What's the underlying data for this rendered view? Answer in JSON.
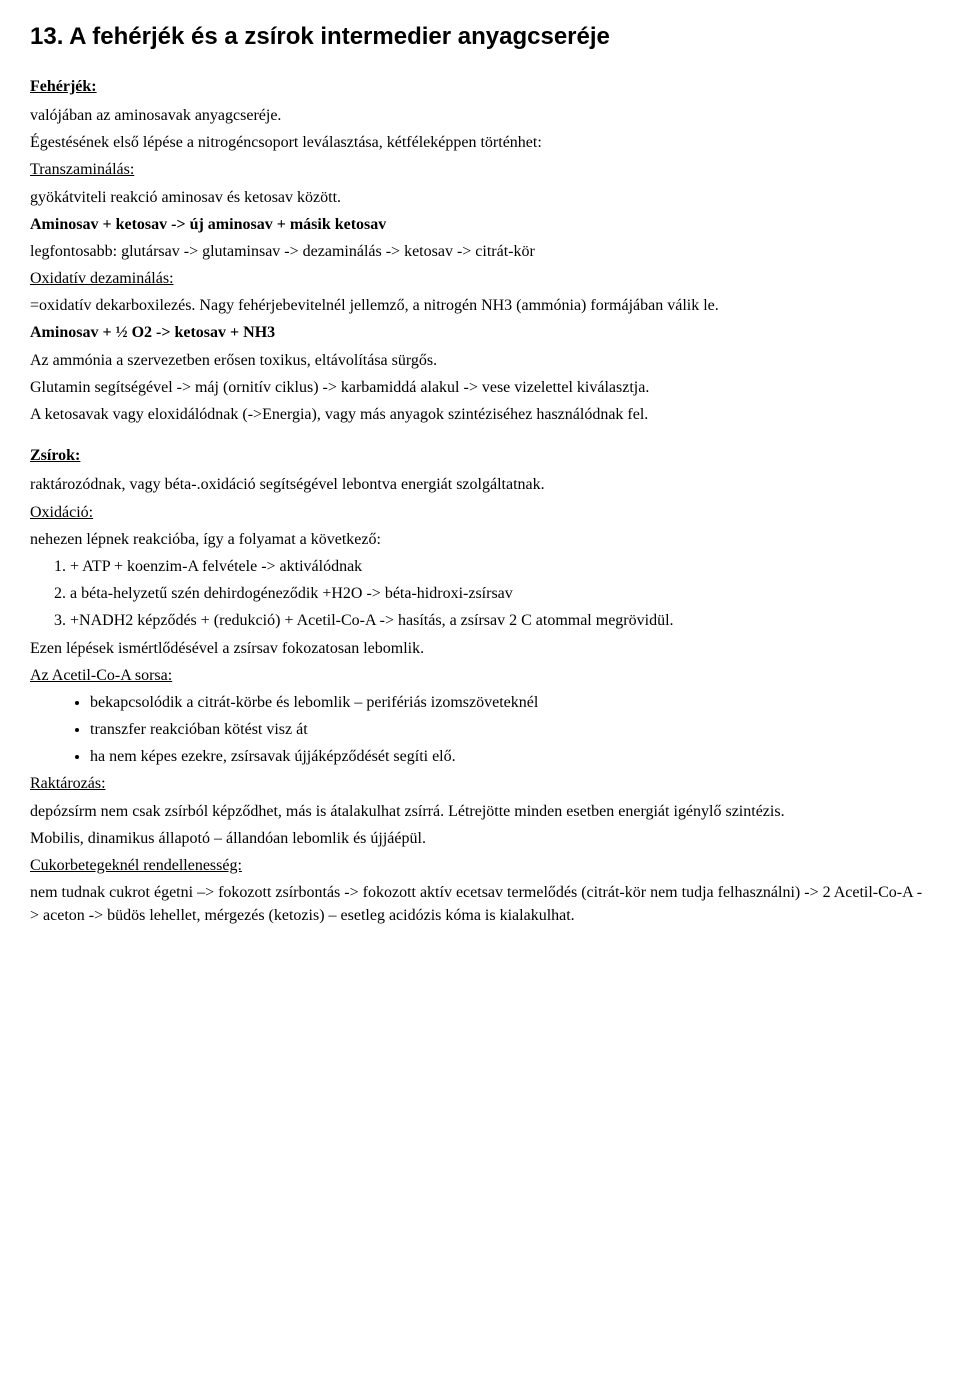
{
  "title": "13. A fehérjék és a zsírok intermedier anyagcseréje",
  "feherjek": {
    "label": "Fehérjék:",
    "p1": "valójában az aminosavak anyagcseréje.",
    "p2": "Égestésének első lépése a nitrogéncsoport leválasztása, kétféleképpen történhet:",
    "transzam_label": "Transzaminálás:",
    "p3": "gyökátviteli reakció aminosav és ketosav között.",
    "p4_bold": "Aminosav + ketosav -> új aminosav + másik ketosav",
    "p5": "legfontosabb: glutársav -> glutaminsav -> dezaminálás -> ketosav -> citrát-kör",
    "oxidativ_label": "Oxidatív dezaminálás:",
    "p6": "=oxidatív dekarboxilezés. Nagy fehérjebevitelnél jellemző, a nitrogén NH3 (ammónia) formájában válik le.",
    "p7_bold": "Aminosav + ½ O2 -> ketosav + NH3",
    "p8": "Az ammónia a szervezetben erősen toxikus, eltávolítása sürgős.",
    "p9": "Glutamin segítségével -> máj (ornitív ciklus) -> karbamiddá alakul -> vese vizelettel kiválasztja.",
    "p10": "A ketosavak vagy eloxidálódnak (->Energia), vagy más anyagok szintéziséhez használódnak fel."
  },
  "zsirok": {
    "label": "Zsírok:",
    "p1": "raktározódnak, vagy béta-.oxidáció segítségével lebontva energiát szolgáltatnak.",
    "oxidacio_label": "Oxidáció:",
    "p2": "nehezen lépnek reakcióba, így a folyamat a következő:",
    "ol": [
      "+ ATP + koenzim-A felvétele -> aktiválódnak",
      "a béta-helyzetű szén dehirdogéneződik +H2O -> béta-hidroxi-zsírsav",
      "+NADH2 képződés + (redukció) + Acetil-Co-A -> hasítás, a zsírsav 2 C atommal megrövidül."
    ],
    "p3": "Ezen lépések ismértlődésével a zsírsav fokozatosan lebomlik.",
    "acetil_label": "Az Acetil-Co-A sorsa:",
    "ul": [
      "bekapcsolódik a citrát-körbe és lebomlik – perifériás izomszöveteknél",
      "transzfer reakcióban kötést visz át",
      "ha nem képes ezekre, zsírsavak újjáképződését segíti elő."
    ],
    "raktarozas_label": "Raktározás:",
    "p4": "depózsírm nem csak zsírból képződhet, más is átalakulhat zsírrá. Létrejötte minden esetben energiát igénylő szintézis.",
    "p5": "Mobilis, dinamikus állapotó – állandóan lebomlik és újjáépül.",
    "cukor_label": "Cukorbetegeknél rendellenesség:",
    "p6": "nem tudnak cukrot égetni –> fokozott zsírbontás -> fokozott aktív ecetsav termelődés (citrát-kör nem tudja felhasználni) -> 2 Acetil-Co-A  -> aceton -> büdös lehellet, mérgezés (ketozis) – esetleg acidózis kóma is kialakulhat."
  }
}
